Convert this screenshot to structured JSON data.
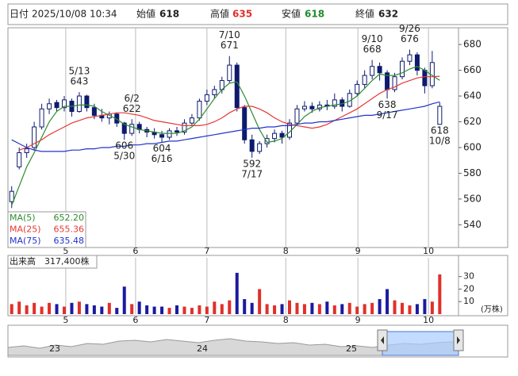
{
  "header": {
    "date_label": "日付",
    "datetime": "2025/10/08 10:34",
    "open_label": "始値",
    "high_label": "高値",
    "low_label": "安値",
    "close_label": "終値"
  },
  "chart_data": [
    {
      "type": "candlestick",
      "xlim": [
        -0.5,
        59.5
      ],
      "ylim": [
        523,
        693
      ],
      "yticks": [
        540,
        560,
        580,
        600,
        620,
        640,
        660,
        680
      ],
      "grid": "x",
      "xticks": [
        {
          "value": 7.2,
          "label": "5"
        },
        {
          "value": 16.5,
          "label": "6"
        },
        {
          "value": 26,
          "label": "7"
        },
        {
          "value": 36.5,
          "label": "8"
        },
        {
          "value": 46.1,
          "label": "9"
        },
        {
          "value": 55.5,
          "label": "10"
        }
      ],
      "up_color": "#ffffff",
      "down_color": "#0d1a6e",
      "edge_color": "#0d1a6e",
      "candles": {
        "open": [
          558,
          585,
          596,
          600,
          616,
          630,
          635,
          631,
          636,
          628,
          640,
          631,
          625,
          623,
          626,
          619,
          611,
          618,
          614,
          612,
          610,
          608,
          613,
          612,
          619,
          623,
          636,
          641,
          645,
          652,
          664,
          631,
          606,
          597,
          603,
          607,
          611,
          608,
          619,
          630,
          632,
          630,
          633,
          632,
          637,
          632,
          642,
          649,
          656,
          663,
          658,
          645,
          655,
          667,
          672,
          660,
          648,
          618
        ],
        "high": [
          570,
          600,
          603,
          620,
          634,
          638,
          637,
          640,
          638,
          643,
          641,
          634,
          630,
          628,
          627,
          620,
          622,
          620,
          616,
          615,
          613,
          615,
          616,
          622,
          626,
          638,
          645,
          648,
          655,
          671,
          666,
          633,
          610,
          605,
          610,
          614,
          613,
          622,
          633,
          636,
          635,
          636,
          637,
          642,
          639,
          645,
          652,
          660,
          668,
          666,
          660,
          658,
          670,
          676,
          674,
          662,
          675,
          635
        ],
        "low": [
          553,
          583,
          592,
          598,
          614,
          626,
          628,
          628,
          624,
          627,
          628,
          622,
          620,
          618,
          616,
          606,
          609,
          611,
          608,
          607,
          604,
          606,
          609,
          610,
          617,
          621,
          633,
          638,
          642,
          650,
          628,
          603,
          592,
          595,
          600,
          604,
          603,
          606,
          617,
          628,
          627,
          628,
          629,
          630,
          628,
          631,
          640,
          646,
          653,
          652,
          638,
          643,
          653,
          664,
          656,
          642,
          646,
          618
        ],
        "close": [
          566,
          596,
          599,
          616,
          630,
          634,
          631,
          637,
          628,
          640,
          631,
          625,
          623,
          626,
          619,
          611,
          618,
          614,
          612,
          610,
          608,
          613,
          612,
          619,
          623,
          636,
          641,
          645,
          652,
          664,
          631,
          606,
          597,
          603,
          607,
          611,
          608,
          619,
          630,
          632,
          630,
          633,
          632,
          637,
          632,
          642,
          649,
          656,
          663,
          658,
          645,
          655,
          667,
          672,
          660,
          648,
          666,
          632
        ]
      },
      "series": [
        {
          "name": "MA(5)",
          "color": "#2e8b2e",
          "legend_value": "652.20",
          "values": [
            555,
            570,
            585,
            596,
            608,
            620,
            628,
            632,
            632,
            633,
            633,
            632,
            628,
            625,
            622,
            618,
            616,
            614,
            613,
            612,
            611,
            611,
            611,
            613,
            616,
            622,
            630,
            638,
            645,
            650,
            651,
            640,
            627,
            614,
            604,
            605,
            607,
            612,
            618,
            624,
            628,
            631,
            632,
            633,
            634,
            636,
            640,
            646,
            652,
            657,
            656,
            656,
            658,
            661,
            663,
            660,
            656,
            652.2
          ]
        },
        {
          "name": "MA(25)",
          "color": "#e53935",
          "legend_value": "655.36",
          "values": [
            null,
            598,
            600,
            603,
            606,
            610,
            613,
            616,
            619,
            621,
            623,
            624,
            625,
            626,
            627,
            627,
            626,
            625,
            623,
            621,
            620,
            619,
            618,
            617,
            617,
            617,
            618,
            620,
            623,
            627,
            630,
            632,
            632,
            630,
            627,
            623,
            620,
            618,
            617,
            616,
            615,
            616,
            618,
            621,
            624,
            627,
            630,
            634,
            638,
            642,
            645,
            647,
            650,
            652,
            654,
            655,
            655,
            655.36
          ]
        },
        {
          "name": "MA(75)",
          "color": "#2233cc",
          "legend_value": "635.48",
          "values": [
            606,
            603,
            600,
            598,
            597,
            597,
            597,
            597,
            598,
            598,
            599,
            599,
            600,
            600,
            601,
            601,
            602,
            602,
            603,
            603,
            604,
            605,
            605,
            606,
            607,
            608,
            609,
            610,
            611,
            612,
            613,
            614,
            615,
            615,
            616,
            616,
            617,
            617,
            618,
            619,
            619,
            620,
            620,
            621,
            622,
            623,
            624,
            625,
            625,
            626,
            627,
            628,
            629,
            630,
            631,
            632,
            634,
            635.48
          ]
        }
      ],
      "annotations": [
        {
          "date": "5/13",
          "value": 643,
          "x": 9
        },
        {
          "date": "6/2",
          "value": 622,
          "x": 16
        },
        {
          "date": "5/30",
          "value": 606,
          "x": 15
        },
        {
          "date": "6/16",
          "value": 604,
          "x": 20
        },
        {
          "date": "7/10",
          "value": 671,
          "x": 29
        },
        {
          "date": "7/17",
          "value": 592,
          "x": 32
        },
        {
          "date": "9/10",
          "value": 668,
          "x": 48
        },
        {
          "date": "9/26",
          "value": 676,
          "x": 53
        },
        {
          "date": "9/17",
          "value": 638,
          "x": 50
        },
        {
          "date": "10/8",
          "value": 618,
          "x": 57
        }
      ]
    },
    {
      "type": "bar",
      "title": "出来高",
      "last_label": "317,400株",
      "unit": "(万株)",
      "xlim": [
        -0.5,
        59.5
      ],
      "ylim": [
        0,
        45
      ],
      "yticks": [
        10,
        20,
        30
      ],
      "grid": "x",
      "xticks": [
        {
          "value": 7.2,
          "label": "5"
        },
        {
          "value": 16.5,
          "label": "6"
        },
        {
          "value": 26,
          "label": "7"
        },
        {
          "value": 36.5,
          "label": "8"
        },
        {
          "value": 46.1,
          "label": "9"
        },
        {
          "value": 55.5,
          "label": "10"
        }
      ],
      "up_color": "#e0302a",
      "down_color": "#1a1aa0",
      "values": [
        8,
        10,
        7,
        9,
        6,
        9,
        8,
        6,
        9,
        10,
        8,
        7,
        6,
        9,
        5,
        22,
        8,
        10,
        7,
        6,
        6,
        5,
        7,
        6,
        5,
        7,
        6,
        10,
        8,
        11,
        33,
        12,
        9,
        20,
        8,
        7,
        8,
        11,
        9,
        8,
        9,
        8,
        10,
        7,
        8,
        9,
        6,
        8,
        9,
        12,
        20,
        11,
        9,
        7,
        8,
        12,
        10,
        31.74
      ]
    }
  ],
  "navigator": {
    "labels": [
      "23",
      "24",
      "25"
    ]
  }
}
